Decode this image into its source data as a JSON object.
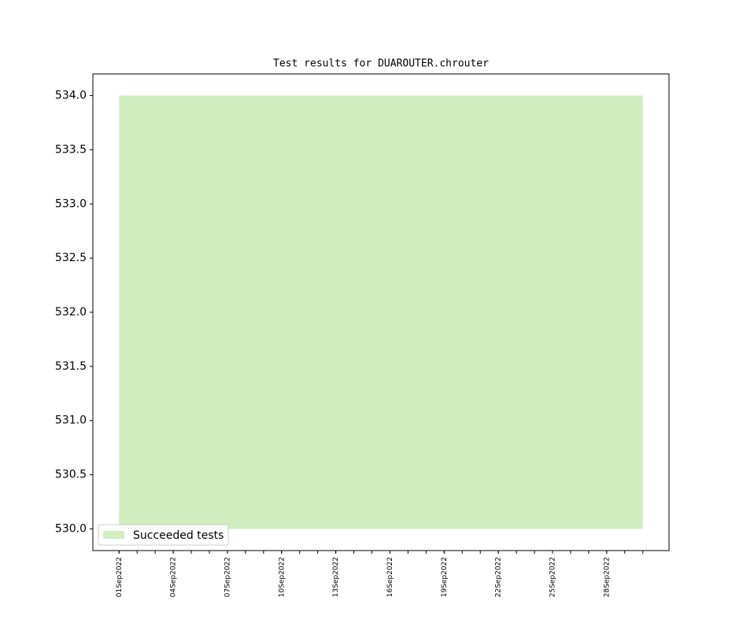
{
  "chart_data": {
    "type": "range-area",
    "title": "Test results for DUAROUTER.chrouter",
    "x": [
      "01Sep2022",
      "02Sep2022",
      "03Sep2022",
      "04Sep2022",
      "05Sep2022",
      "06Sep2022",
      "07Sep2022",
      "08Sep2022",
      "09Sep2022",
      "10Sep2022",
      "11Sep2022",
      "12Sep2022",
      "13Sep2022",
      "14Sep2022",
      "15Sep2022",
      "16Sep2022",
      "17Sep2022",
      "18Sep2022",
      "19Sep2022",
      "20Sep2022",
      "21Sep2022",
      "22Sep2022",
      "23Sep2022",
      "24Sep2022",
      "25Sep2022",
      "26Sep2022",
      "27Sep2022",
      "28Sep2022",
      "29Sep2022",
      "30Sep2022"
    ],
    "series": [
      {
        "name": "Succeeded tests",
        "color": "#cfedbf",
        "low": [
          530,
          530,
          530,
          530,
          530,
          530,
          530,
          530,
          530,
          530,
          530,
          530,
          530,
          530,
          530,
          530,
          530,
          530,
          530,
          530,
          530,
          530,
          530,
          530,
          530,
          530,
          530,
          530,
          530,
          530
        ],
        "values": [
          534,
          534,
          534,
          534,
          534,
          534,
          534,
          534,
          534,
          534,
          534,
          534,
          534,
          534,
          534,
          534,
          534,
          534,
          534,
          534,
          534,
          534,
          534,
          534,
          534,
          534,
          534,
          534,
          534,
          534
        ]
      }
    ],
    "ylim": [
      529.8,
      534.2
    ],
    "yticks": [
      {
        "value": 530,
        "label": "530.0"
      },
      {
        "value": 530.5,
        "label": "530.5"
      },
      {
        "value": 531,
        "label": "531.0"
      },
      {
        "value": 531.5,
        "label": "531.5"
      },
      {
        "value": 532,
        "label": "532.0"
      },
      {
        "value": 532.5,
        "label": "532.5"
      },
      {
        "value": 533,
        "label": "533.0"
      },
      {
        "value": 533.5,
        "label": "533.5"
      },
      {
        "value": 534,
        "label": "534.0"
      }
    ],
    "xticks": [
      "01Sep2022",
      "04Sep2022",
      "07Sep2022",
      "10Sep2022",
      "13Sep2022",
      "16Sep2022",
      "19Sep2022",
      "22Sep2022",
      "25Sep2022",
      "28Sep2022"
    ],
    "legend": "lower left",
    "grid": false
  }
}
